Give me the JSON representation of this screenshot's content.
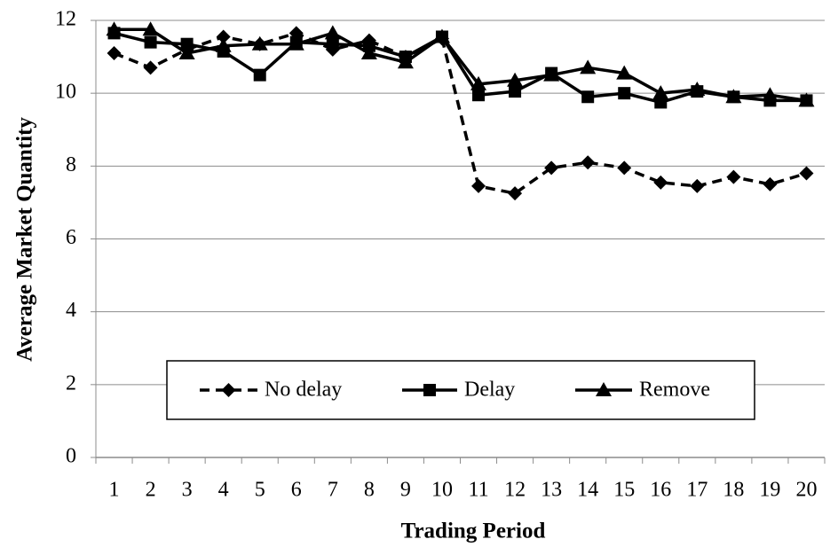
{
  "chart_data": {
    "type": "line",
    "x_label": "Trading Period",
    "y_label": "Average Market Quantity",
    "categories": [
      "1",
      "2",
      "3",
      "4",
      "5",
      "6",
      "7",
      "8",
      "9",
      "10",
      "11",
      "12",
      "13",
      "14",
      "15",
      "16",
      "17",
      "18",
      "19",
      "20"
    ],
    "series": [
      {
        "name": "No delay",
        "color": "#000000",
        "dashed": true,
        "marker": "diamond",
        "values": [
          11.1,
          10.7,
          11.2,
          11.55,
          11.35,
          11.65,
          11.2,
          11.45,
          11.0,
          11.5,
          7.45,
          7.25,
          7.95,
          8.1,
          7.95,
          7.55,
          7.45,
          7.7,
          7.5,
          7.8
        ]
      },
      {
        "name": "Delay",
        "color": "#000000",
        "dashed": false,
        "marker": "square",
        "values": [
          11.65,
          11.4,
          11.35,
          11.15,
          10.5,
          11.4,
          11.35,
          11.3,
          11.0,
          11.55,
          9.95,
          10.05,
          10.55,
          9.9,
          10.0,
          9.75,
          10.05,
          9.9,
          9.8,
          9.8
        ]
      },
      {
        "name": "Remove",
        "color": "#000000",
        "dashed": false,
        "marker": "triangle",
        "values": [
          11.75,
          11.75,
          11.1,
          11.3,
          11.35,
          11.35,
          11.65,
          11.1,
          10.85,
          11.55,
          10.25,
          10.35,
          10.5,
          10.7,
          10.55,
          10.0,
          10.1,
          9.9,
          9.95,
          9.8
        ]
      }
    ],
    "ylim": [
      0,
      12
    ],
    "yticks": [
      0,
      2,
      4,
      6,
      8,
      10,
      12
    ],
    "grid": true,
    "legend": "bottom"
  }
}
